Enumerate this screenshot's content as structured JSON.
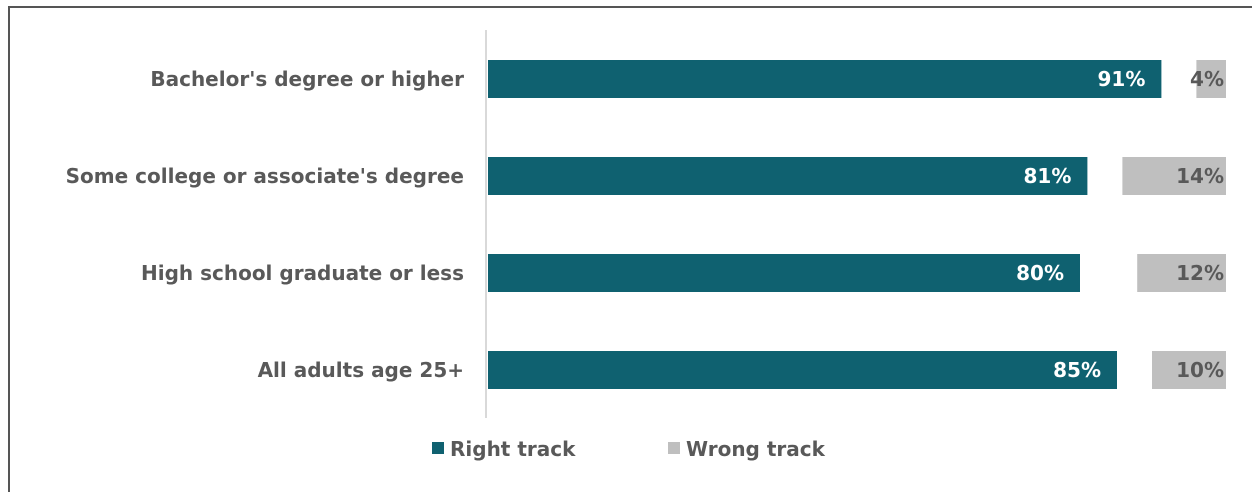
{
  "chart_data": {
    "type": "bar",
    "orientation": "horizontal",
    "categories": [
      "Bachelor's degree or higher",
      "Some college or associate's degree",
      "High school graduate or less",
      "All adults age 25+"
    ],
    "series": [
      {
        "name": "Right track",
        "values": [
          91,
          81,
          80,
          85
        ],
        "labels": [
          "91%",
          "81%",
          "80%",
          "85%"
        ],
        "color": "#0f6170",
        "label_color": "#ffffff"
      },
      {
        "name": "Wrong track",
        "values": [
          4,
          14,
          12,
          10
        ],
        "labels": [
          "4%",
          "14%",
          "12%",
          "10%"
        ],
        "color": "#bfbfbf",
        "label_color": "#595959"
      }
    ],
    "xlim": [
      0,
      100
    ],
    "grid": false,
    "legend": "bottom-center"
  }
}
